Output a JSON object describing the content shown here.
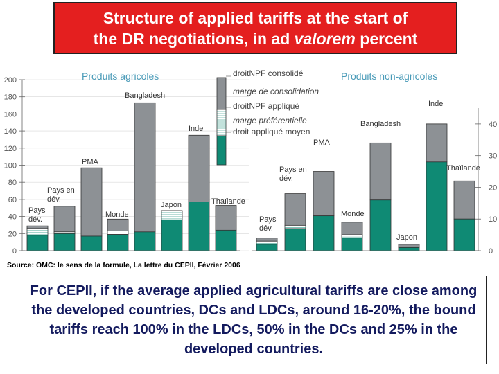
{
  "title": {
    "line1": "Structure of applied tariffs at the start of",
    "line2_pre": "the DR negotiations, in ad ",
    "line2_em": "valorem",
    "line2_post": " percent"
  },
  "source": "Source: OMC: le sens de la formule, La lettre du CEPII, Février 2006",
  "note": "For CEPII, if the average applied agricultural tariffs are close among the developed countries, DCs and LDCs, around 16-20%, the bound tariffs reach 100% in the LDCs, 50% in the DCs and 25% in the developed countries.",
  "colors": {
    "applied": "#0f8a74",
    "bound_margin": "#8d9195",
    "pref_margin": "#ffffff",
    "grid_line": "#d8d8d8",
    "axis_text": "#555555",
    "panel_title": "#4a9bb8"
  },
  "chart_data": [
    {
      "type": "bar",
      "title": "Produits agricoles",
      "ylim": [
        0,
        200
      ],
      "yticks": [
        0,
        20,
        40,
        60,
        80,
        100,
        120,
        140,
        160,
        180,
        200
      ],
      "categories": [
        "Pays dév.",
        "Pays en dév.",
        "PMA",
        "Monde",
        "Bangladesh",
        "Japon",
        "Inde",
        "Thaïlande"
      ],
      "series": [
        {
          "name": "droit appliqué moyen",
          "values": [
            18,
            20,
            17,
            19,
            22,
            36,
            57,
            24
          ]
        },
        {
          "name": "marge préférentielle",
          "values": [
            8,
            2,
            0,
            4,
            0,
            11,
            0,
            0
          ]
        },
        {
          "name": "marge de consolidation",
          "values": [
            3,
            30,
            80,
            14,
            151,
            0,
            78,
            29
          ]
        }
      ]
    },
    {
      "type": "bar",
      "title": "Produits non-agricoles",
      "ylim": [
        0,
        45
      ],
      "yticks": [
        0,
        10,
        20,
        30,
        40
      ],
      "categories": [
        "Pays dév.",
        "Pays en dév.",
        "PMA",
        "Monde",
        "Bangladesh",
        "Japon",
        "Inde",
        "Thaïlande"
      ],
      "series": [
        {
          "name": "droit appliqué moyen",
          "values": [
            2,
            7,
            11,
            4,
            16,
            1,
            28,
            10
          ]
        },
        {
          "name": "marge préférentielle",
          "values": [
            1,
            1,
            0,
            1,
            0,
            0,
            0,
            0
          ]
        },
        {
          "name": "marge de consolidation",
          "values": [
            1,
            10,
            14,
            4,
            18,
            1,
            12,
            12
          ]
        }
      ]
    }
  ],
  "legend": {
    "items": [
      "droitNPF consolidé",
      "marge de consolidation",
      "droitNPF appliqué",
      "marge préférentielle",
      "droit appliqué moyen"
    ]
  }
}
